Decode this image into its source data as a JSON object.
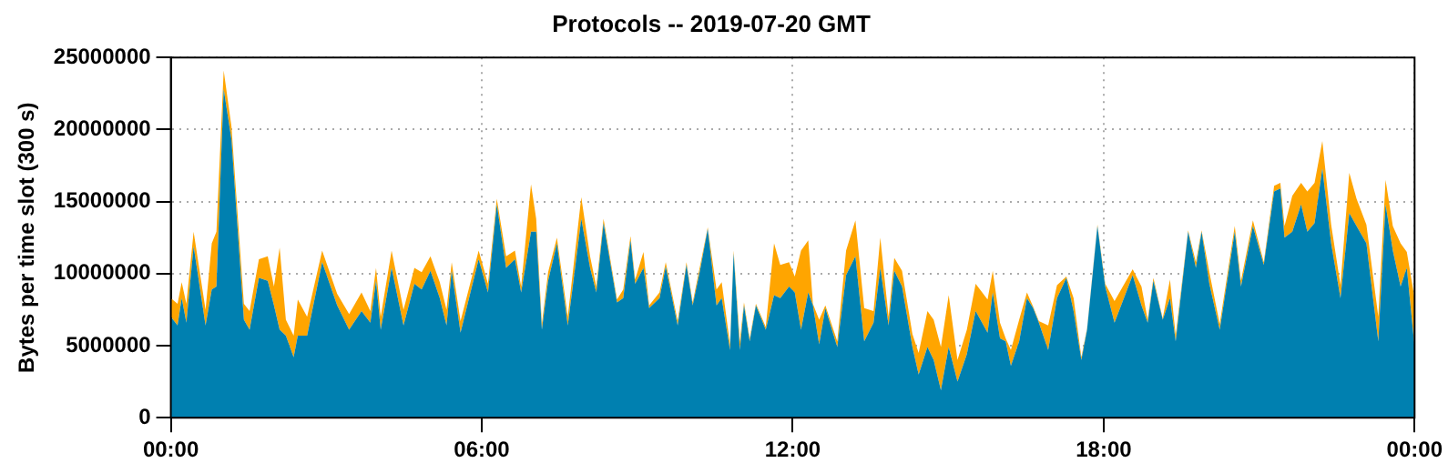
{
  "chart_data": {
    "type": "area",
    "title": "Protocols -- 2019-07-20 GMT",
    "ylabel": "Bytes per time slot (300 s)",
    "stacked": true,
    "grid": true,
    "xlim": [
      0,
      24
    ],
    "xticks": [
      {
        "value": 0,
        "label": "00:00"
      },
      {
        "value": 6,
        "label": "06:00"
      },
      {
        "value": 12,
        "label": "12:00"
      },
      {
        "value": 18,
        "label": "18:00"
      },
      {
        "value": 24,
        "label": "00:00"
      }
    ],
    "ylim": [
      0,
      25000000
    ],
    "yticks": [
      0,
      5000000,
      10000000,
      15000000,
      20000000,
      25000000
    ],
    "x": [
      0,
      0.13,
      0.21,
      0.3,
      0.44,
      0.67,
      0.79,
      0.88,
      1.02,
      1.17,
      1.41,
      1.52,
      1.7,
      1.87,
      1.99,
      2.1,
      2.22,
      2.37,
      2.45,
      2.63,
      2.92,
      3.21,
      3.44,
      3.68,
      3.85,
      3.96,
      4.05,
      4.26,
      4.49,
      4.7,
      4.84,
      5.01,
      5.19,
      5.32,
      5.42,
      5.59,
      5.94,
      6.12,
      6.29,
      6.47,
      6.64,
      6.76,
      6.95,
      7.05,
      7.16,
      7.28,
      7.45,
      7.66,
      7.92,
      8.09,
      8.21,
      8.35,
      8.61,
      8.73,
      8.87,
      8.96,
      9.12,
      9.23,
      9.43,
      9.55,
      9.78,
      9.95,
      10.07,
      10.21,
      10.36,
      10.53,
      10.63,
      10.79,
      10.86,
      10.98,
      11.06,
      11.17,
      11.29,
      11.48,
      11.64,
      11.76,
      11.93,
      12.04,
      12.16,
      12.3,
      12.39,
      12.51,
      12.63,
      12.86,
      13.03,
      13.21,
      13.38,
      13.56,
      13.69,
      13.85,
      13.96,
      14.11,
      14.31,
      14.43,
      14.6,
      14.72,
      14.86,
      15.01,
      15.18,
      15.36,
      15.53,
      15.76,
      15.86,
      16,
      16.11,
      16.21,
      16.37,
      16.52,
      16.64,
      16.75,
      16.93,
      17.1,
      17.28,
      17.42,
      17.57,
      17.68,
      17.88,
      18.03,
      18.21,
      18.56,
      18.73,
      18.85,
      18.96,
      19.14,
      19.28,
      19.39,
      19.63,
      19.78,
      19.89,
      20.04,
      20.24,
      20.53,
      20.65,
      20.88,
      21.09,
      21.29,
      21.41,
      21.49,
      21.64,
      21.81,
      21.93,
      22.07,
      22.22,
      22.39,
      22.57,
      22.74,
      22.88,
      23.07,
      23.3,
      23.44,
      23.58,
      23.73,
      23.85,
      24
    ],
    "series": [
      {
        "color": "#0080b0",
        "values": [
          7000000,
          6400000,
          8300000,
          6600000,
          11900000,
          6400000,
          8900000,
          9100000,
          22800000,
          19300000,
          6800000,
          6100000,
          9700000,
          9500000,
          7800000,
          6100000,
          5700000,
          4200000,
          5700000,
          5700000,
          10800000,
          7800000,
          6100000,
          7400000,
          6600000,
          9500000,
          6100000,
          10400000,
          6400000,
          9300000,
          8900000,
          10200000,
          8300000,
          6400000,
          10200000,
          5900000,
          11000000,
          8700000,
          14800000,
          10400000,
          11000000,
          8700000,
          12900000,
          12900000,
          6100000,
          9500000,
          12100000,
          6400000,
          13800000,
          10400000,
          8700000,
          13500000,
          8000000,
          8300000,
          12300000,
          9300000,
          10400000,
          7600000,
          8300000,
          10500000,
          6400000,
          10600000,
          7800000,
          10200000,
          13100000,
          7800000,
          8300000,
          4700000,
          11400000,
          4700000,
          7800000,
          5300000,
          7800000,
          6100000,
          8500000,
          8300000,
          9100000,
          8700000,
          6100000,
          8700000,
          7800000,
          5100000,
          7600000,
          4900000,
          9900000,
          11200000,
          5300000,
          6600000,
          10400000,
          6400000,
          10200000,
          9100000,
          4900000,
          3000000,
          4900000,
          4000000,
          1900000,
          4900000,
          2500000,
          4400000,
          7400000,
          5900000,
          8700000,
          5500000,
          5300000,
          3600000,
          5300000,
          8300000,
          7600000,
          6600000,
          4700000,
          8300000,
          9700000,
          7400000,
          4000000,
          6100000,
          13300000,
          9100000,
          6600000,
          9900000,
          7800000,
          6600000,
          9500000,
          6800000,
          8300000,
          5300000,
          12900000,
          10400000,
          12900000,
          9300000,
          6100000,
          12900000,
          9100000,
          13300000,
          10600000,
          15700000,
          15900000,
          12500000,
          12900000,
          14800000,
          12900000,
          13500000,
          17300000,
          12100000,
          8300000,
          14200000,
          13300000,
          12100000,
          5300000,
          14800000,
          11600000,
          9100000,
          10400000,
          4900000
        ]
      },
      {
        "color": "#ffa500",
        "values": [
          1300000,
          1500000,
          1100000,
          1300000,
          1000000,
          1100000,
          3200000,
          3800000,
          1300000,
          900000,
          1100000,
          1300000,
          1300000,
          1700000,
          1300000,
          5700000,
          1100000,
          1500000,
          2500000,
          1300000,
          800000,
          800000,
          1100000,
          1300000,
          800000,
          900000,
          900000,
          1200000,
          1100000,
          1100000,
          1200000,
          1000000,
          1100000,
          1100000,
          600000,
          800000,
          600000,
          600000,
          400000,
          800000,
          600000,
          400000,
          3300000,
          900000,
          400000,
          600000,
          400000,
          600000,
          1500000,
          800000,
          400000,
          300000,
          200000,
          600000,
          300000,
          300000,
          1100000,
          200000,
          400000,
          300000,
          300000,
          200000,
          200000,
          300000,
          100000,
          1100000,
          1100000,
          400000,
          200000,
          600000,
          200000,
          200000,
          100000,
          200000,
          3600000,
          2300000,
          1700000,
          1100000,
          5500000,
          3600000,
          100000,
          1700000,
          200000,
          400000,
          1700000,
          2500000,
          2300000,
          800000,
          2100000,
          600000,
          900000,
          1100000,
          900000,
          1500000,
          2500000,
          2800000,
          3000000,
          3600000,
          1500000,
          1700000,
          1900000,
          2300000,
          1500000,
          1100000,
          200000,
          1100000,
          1500000,
          400000,
          100000,
          100000,
          1700000,
          900000,
          100000,
          900000,
          200000,
          100000,
          100000,
          200000,
          1500000,
          400000,
          1300000,
          200000,
          200000,
          100000,
          1300000,
          400000,
          100000,
          400000,
          100000,
          800000,
          400000,
          400000,
          400000,
          400000,
          200000,
          400000,
          400000,
          800000,
          2500000,
          1500000,
          2800000,
          2800000,
          1900000,
          1300000,
          900000,
          2800000,
          1900000,
          1300000,
          1700000,
          1700000,
          1700000,
          3000000,
          1100000,
          3400000
        ]
      }
    ]
  }
}
